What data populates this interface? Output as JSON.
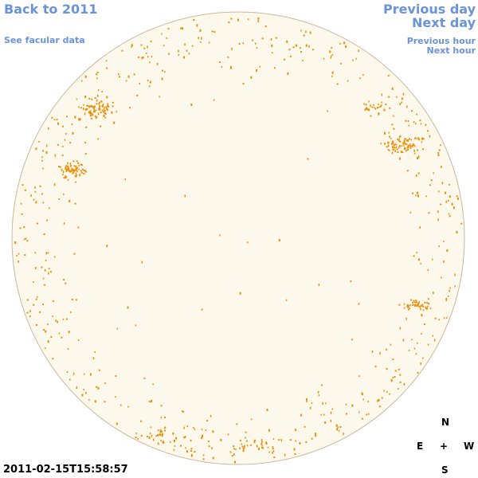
{
  "navigation": {
    "back_label": "Back to 2011",
    "facular_label": "See facular data",
    "previous_day_label": "Previous day",
    "next_day_label": "Next day",
    "previous_hour_label": "Previous hour",
    "next_hour_label": "Next hour"
  },
  "compass": {
    "north": "N",
    "east": "E",
    "center": "+",
    "west": "W",
    "south": "S"
  },
  "timestamp": "2011-02-15T15:58:57",
  "colors": {
    "disk_fill": "#fdf8ec",
    "disk_edge": "#c9b89a",
    "facula": "#e8900a",
    "link": "#6a93d8"
  }
}
